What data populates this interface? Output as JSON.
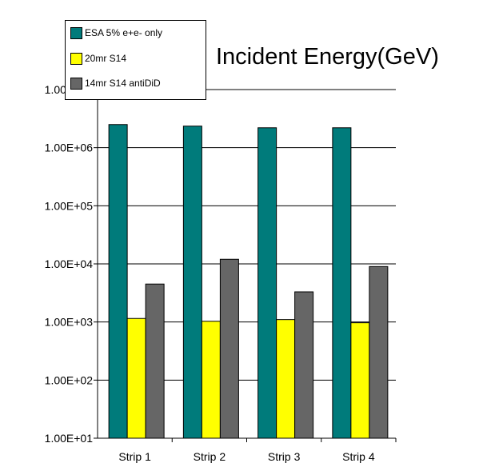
{
  "chart_data": {
    "type": "bar",
    "title": "Incident Energy(GeV)",
    "xlabel": "",
    "ylabel": "",
    "yscale": "log",
    "ylim": [
      10,
      10000000
    ],
    "yticks": [
      "1.00E+01",
      "1.00E+02",
      "1.00E+03",
      "1.00E+04",
      "1.00E+05",
      "1.00E+06",
      "1.00E+07"
    ],
    "categories": [
      "Strip 1",
      "Strip 2",
      "Strip 3",
      "Strip 4"
    ],
    "series": [
      {
        "name": "ESA 5% e+e- only",
        "color": "#007b7b",
        "values": [
          2500000,
          2350000,
          2200000,
          2200000
        ]
      },
      {
        "name": "20mr S14",
        "color": "#ffff00",
        "values": [
          1150,
          1030,
          1100,
          970
        ]
      },
      {
        "name": "14mr S14 antiDiD",
        "color": "#666666",
        "values": [
          4500,
          12000,
          3300,
          9000
        ]
      }
    ],
    "grid": true,
    "legend_position": "top-left"
  }
}
